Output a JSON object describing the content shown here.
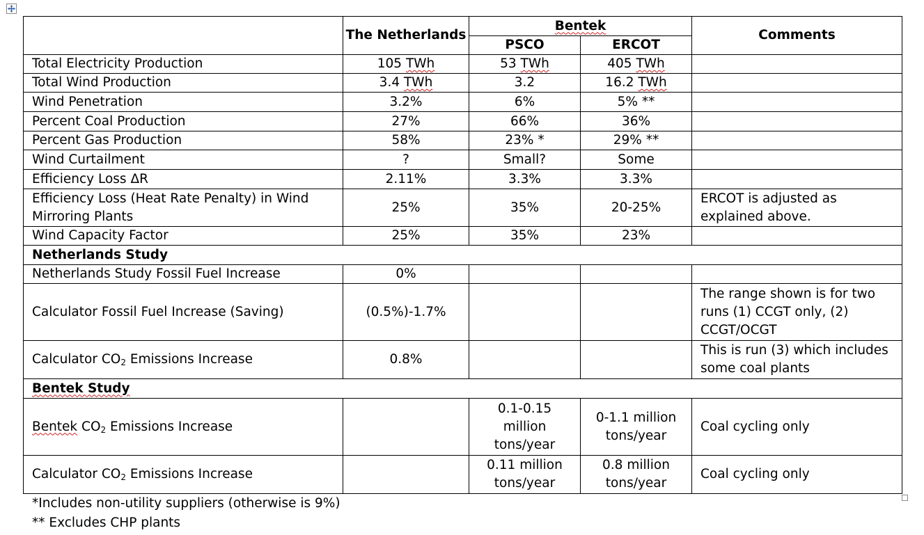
{
  "headers": {
    "netherlands": "The Netherlands",
    "bentek": "Bentek",
    "psco": "PSCO",
    "ercot": "ERCOT",
    "comments": "Comments"
  },
  "rows": [
    {
      "label": "Total Electricity Production",
      "nl": "105 TWh",
      "psco": "53 TWh",
      "ercot": "405 TWh",
      "comment": ""
    },
    {
      "label": "Total Wind Production",
      "nl": "3.4 TWh",
      "psco": "3.2",
      "ercot": "16.2 TWh",
      "comment": ""
    },
    {
      "label": "Wind Penetration",
      "nl": "3.2%",
      "psco": "6%",
      "ercot": "5% **",
      "comment": ""
    },
    {
      "label": "Percent Coal Production",
      "nl": "27%",
      "psco": "66%",
      "ercot": "36%",
      "comment": ""
    },
    {
      "label": "Percent Gas Production",
      "nl": "58%",
      "psco": "23% *",
      "ercot": "29% **",
      "comment": ""
    },
    {
      "label": "Wind Curtailment",
      "nl": "?",
      "psco": "Small?",
      "ercot": "Some",
      "comment": ""
    },
    {
      "label": "Efficiency Loss ΔR",
      "nl": "2.11%",
      "psco": "3.3%",
      "ercot": "3.3%",
      "comment": ""
    },
    {
      "label": "Efficiency Loss (Heat Rate Penalty) in Wind Mirroring Plants",
      "nl": "25%",
      "psco": "35%",
      "ercot": "20-25%",
      "comment": "ERCOT is adjusted as explained above."
    },
    {
      "label": "Wind Capacity Factor",
      "nl": "25%",
      "psco": "35%",
      "ercot": "23%",
      "comment": ""
    }
  ],
  "netherlands_section": {
    "title": "Netherlands Study",
    "rows": [
      {
        "label": "Netherlands Study Fossil Fuel Increase",
        "nl": "0%",
        "psco": "",
        "ercot": "",
        "comment": ""
      },
      {
        "label": "Calculator Fossil Fuel Increase (Saving)",
        "nl": "(0.5%)-1.7%",
        "psco": "",
        "ercot": "",
        "comment": "The range shown is for two runs (1) CCGT only, (2) CCGT/OCGT"
      },
      {
        "label_pre": "Calculator CO",
        "label_sub": "2",
        "label_post": " Emissions Increase",
        "nl": "0.8%",
        "psco": "",
        "ercot": "",
        "comment": "This is run (3) which includes some coal plants"
      }
    ]
  },
  "bentek_section": {
    "title": "Bentek Study",
    "rows": [
      {
        "label_pre": "Bentek CO",
        "label_sub": "2",
        "label_post": " Emissions Increase",
        "nl": "",
        "psco": "0.1-0.15 million tons/year",
        "ercot": "0-1.1 million tons/year",
        "comment": "Coal cycling only"
      },
      {
        "label_pre": "Calculator CO",
        "label_sub": "2",
        "label_post": " Emissions Increase",
        "nl": "",
        "psco": "0.11 million tons/year",
        "ercot": "0.8 million tons/year",
        "comment": "Coal cycling only"
      }
    ]
  },
  "footnotes": [
    "*Includes non-utility suppliers (otherwise is 9%)",
    "** Excludes CHP plants"
  ],
  "icons": {
    "move_handle": "move-cross-icon",
    "resize_handle": "resize-square-icon"
  }
}
